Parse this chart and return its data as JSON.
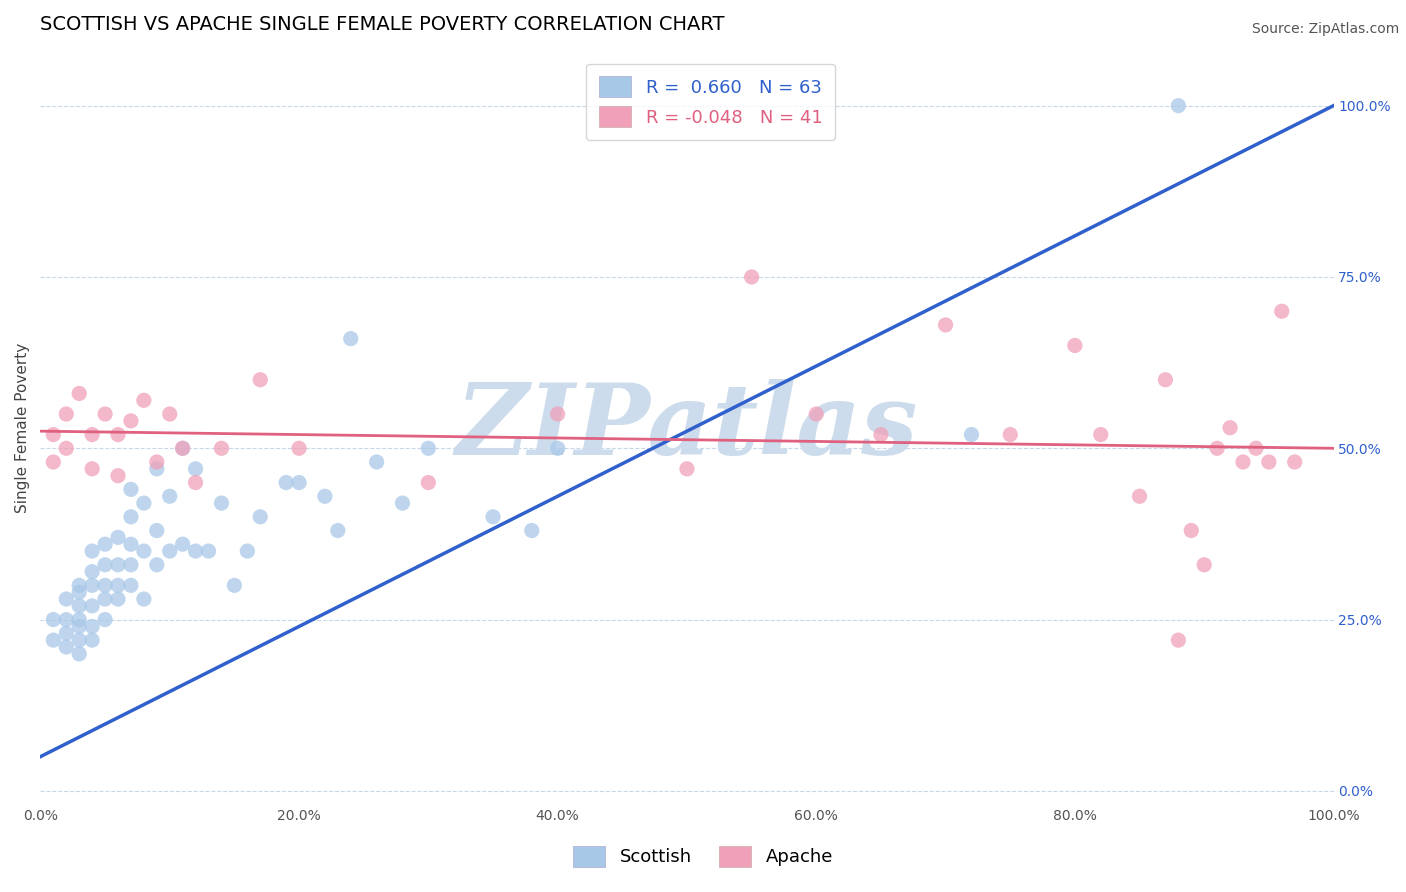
{
  "title": "SCOTTISH VS APACHE SINGLE FEMALE POVERTY CORRELATION CHART",
  "source": "Source: ZipAtlas.com",
  "xlabel": "",
  "ylabel": "Single Female Poverty",
  "xlim": [
    0.0,
    1.0
  ],
  "ylim": [
    -0.02,
    1.08
  ],
  "scottish_R": 0.66,
  "scottish_N": 63,
  "apache_R": -0.048,
  "apache_N": 41,
  "scottish_color": "#a8c8e8",
  "apache_color": "#f0a0b8",
  "scottish_trend_color": "#3060cc",
  "apache_trend_color": "#e06080",
  "background_color": "#ffffff",
  "watermark": "ZIPatlas",
  "watermark_color": "#ccdcec",
  "scottish_x": [
    0.01,
    0.01,
    0.02,
    0.02,
    0.02,
    0.02,
    0.03,
    0.03,
    0.03,
    0.03,
    0.03,
    0.03,
    0.03,
    0.04,
    0.04,
    0.04,
    0.04,
    0.04,
    0.04,
    0.05,
    0.05,
    0.05,
    0.05,
    0.05,
    0.06,
    0.06,
    0.06,
    0.06,
    0.07,
    0.07,
    0.07,
    0.07,
    0.07,
    0.08,
    0.08,
    0.08,
    0.09,
    0.09,
    0.09,
    0.1,
    0.1,
    0.11,
    0.11,
    0.12,
    0.12,
    0.13,
    0.14,
    0.15,
    0.16,
    0.17,
    0.19,
    0.2,
    0.22,
    0.23,
    0.24,
    0.26,
    0.28,
    0.3,
    0.35,
    0.38,
    0.4,
    0.72,
    0.88
  ],
  "scottish_y": [
    0.22,
    0.25,
    0.21,
    0.23,
    0.25,
    0.28,
    0.2,
    0.22,
    0.24,
    0.25,
    0.27,
    0.29,
    0.3,
    0.22,
    0.24,
    0.27,
    0.3,
    0.32,
    0.35,
    0.25,
    0.28,
    0.3,
    0.33,
    0.36,
    0.28,
    0.3,
    0.33,
    0.37,
    0.3,
    0.33,
    0.36,
    0.4,
    0.44,
    0.28,
    0.35,
    0.42,
    0.33,
    0.38,
    0.47,
    0.35,
    0.43,
    0.36,
    0.5,
    0.35,
    0.47,
    0.35,
    0.42,
    0.3,
    0.35,
    0.4,
    0.45,
    0.45,
    0.43,
    0.38,
    0.66,
    0.48,
    0.42,
    0.5,
    0.4,
    0.38,
    0.5,
    0.52,
    1.0
  ],
  "apache_x": [
    0.01,
    0.01,
    0.02,
    0.02,
    0.03,
    0.04,
    0.04,
    0.05,
    0.06,
    0.06,
    0.07,
    0.08,
    0.09,
    0.1,
    0.11,
    0.12,
    0.14,
    0.17,
    0.2,
    0.3,
    0.4,
    0.5,
    0.55,
    0.6,
    0.65,
    0.7,
    0.75,
    0.8,
    0.82,
    0.85,
    0.87,
    0.88,
    0.89,
    0.9,
    0.91,
    0.92,
    0.93,
    0.94,
    0.95,
    0.96,
    0.97
  ],
  "apache_y": [
    0.52,
    0.48,
    0.55,
    0.5,
    0.58,
    0.52,
    0.47,
    0.55,
    0.52,
    0.46,
    0.54,
    0.57,
    0.48,
    0.55,
    0.5,
    0.45,
    0.5,
    0.6,
    0.5,
    0.45,
    0.55,
    0.47,
    0.75,
    0.55,
    0.52,
    0.68,
    0.52,
    0.65,
    0.52,
    0.43,
    0.6,
    0.22,
    0.38,
    0.33,
    0.5,
    0.53,
    0.48,
    0.5,
    0.48,
    0.7,
    0.48
  ],
  "scottish_trend_x0": 0.0,
  "scottish_trend_y0": 0.05,
  "scottish_trend_x1": 1.0,
  "scottish_trend_y1": 1.0,
  "apache_trend_x0": 0.0,
  "apache_trend_y0": 0.525,
  "apache_trend_x1": 1.0,
  "apache_trend_y1": 0.5,
  "xtick_labels": [
    "0.0%",
    "20.0%",
    "40.0%",
    "60.0%",
    "80.0%",
    "100.0%"
  ],
  "xtick_positions": [
    0.0,
    0.2,
    0.4,
    0.6,
    0.8,
    1.0
  ],
  "ytick_labels_right": [
    "100.0%",
    "75.0%",
    "50.0%",
    "25.0%",
    "0.0%"
  ],
  "ytick_positions": [
    1.0,
    0.75,
    0.5,
    0.25,
    0.0
  ],
  "title_fontsize": 14,
  "axis_fontsize": 11,
  "tick_fontsize": 10,
  "source_fontsize": 10,
  "grid_color": "#c8d8e8",
  "grid_linestyle": "--",
  "grid_linewidth": 0.8
}
